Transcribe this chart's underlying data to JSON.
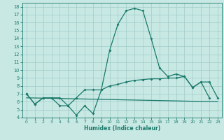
{
  "xlabel": "Humidex (Indice chaleur)",
  "x": [
    0,
    1,
    2,
    3,
    4,
    5,
    6,
    7,
    8,
    9,
    10,
    11,
    12,
    13,
    14,
    15,
    16,
    17,
    18,
    19,
    20,
    21,
    22,
    23
  ],
  "line1": [
    7.0,
    5.7,
    6.5,
    6.5,
    6.5,
    5.5,
    4.3,
    5.5,
    4.5,
    7.5,
    12.5,
    15.8,
    17.5,
    17.8,
    17.5,
    14.0,
    10.3,
    9.2,
    9.5,
    9.2,
    7.8,
    8.5,
    6.5,
    null
  ],
  "line2": [
    7.0,
    5.7,
    6.5,
    6.5,
    5.5,
    5.5,
    6.5,
    7.5,
    7.5,
    7.5,
    8.0,
    8.2,
    8.5,
    8.7,
    8.8,
    8.9,
    8.9,
    9.0,
    9.0,
    9.2,
    7.8,
    8.5,
    8.5,
    6.5
  ],
  "line3_x": [
    0,
    23
  ],
  "line3_y": [
    6.5,
    6.0
  ],
  "ylim": [
    4,
    18.5
  ],
  "xlim": [
    -0.5,
    23.5
  ],
  "yticks": [
    4,
    5,
    6,
    7,
    8,
    9,
    10,
    11,
    12,
    13,
    14,
    15,
    16,
    17,
    18
  ],
  "xticks": [
    0,
    1,
    2,
    3,
    4,
    5,
    6,
    7,
    8,
    9,
    10,
    11,
    12,
    13,
    14,
    15,
    16,
    17,
    18,
    19,
    20,
    21,
    22,
    23
  ],
  "line_color": "#1a7a6a",
  "bg_color": "#c8e8e4",
  "grid_color": "#a0ccc8"
}
